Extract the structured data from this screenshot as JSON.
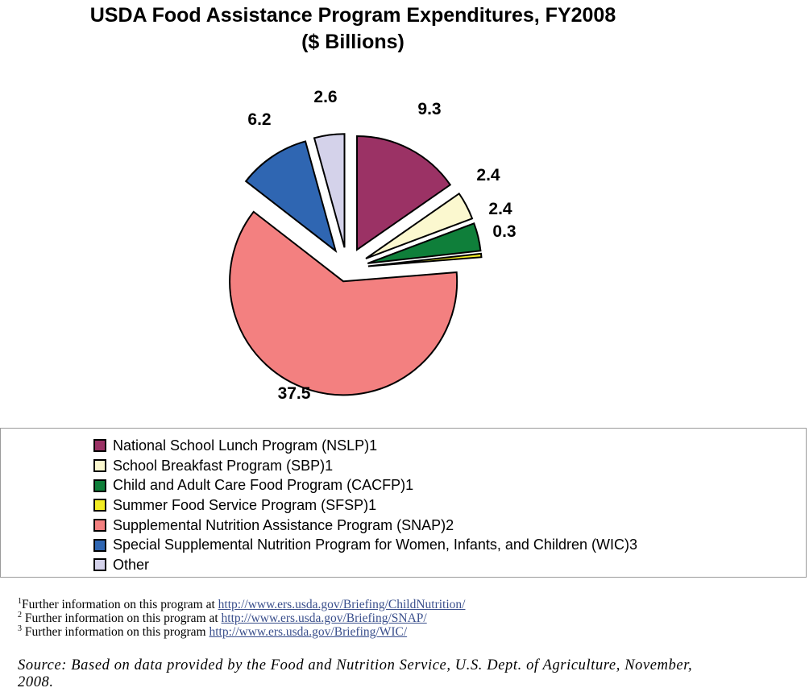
{
  "chart_data": {
    "type": "pie",
    "title": "USDA Food Assistance Program Expenditures, FY2008",
    "subtitle": "($ Billions)",
    "slices": [
      {
        "name": "National School Lunch Program (NSLP)1",
        "value": 9.3,
        "label": "9.3",
        "color": "#9b3265"
      },
      {
        "name": "School Breakfast Program (SBP)1",
        "value": 2.4,
        "label": "2.4",
        "color": "#fbf8cf"
      },
      {
        "name": "Child and Adult Care Food Program (CACFP)1",
        "value": 2.4,
        "label": "2.4",
        "color": "#0f7f3a"
      },
      {
        "name": "Summer Food Service Program (SFSP)1",
        "value": 0.3,
        "label": "0.3",
        "color": "#f2ec24"
      },
      {
        "name": "Supplemental Nutrition Assistance Program (SNAP)2",
        "value": 37.5,
        "label": "37.5",
        "color": "#f38080"
      },
      {
        "name": "Special Supplemental Nutrition Program for Women, Infants, and Children (WIC)3",
        "value": 6.2,
        "label": "6.2",
        "color": "#2f66b2"
      },
      {
        "name": "Other",
        "value": 2.6,
        "label": "2.6",
        "color": "#d4d2ea"
      }
    ],
    "legend_placement": "bottom"
  },
  "footnotes": [
    {
      "mark": "1",
      "text": "Further information on this program at ",
      "link": "http://www.ers.usda.gov/Briefing/ChildNutrition/"
    },
    {
      "mark": "2",
      "text": " Further information on this program at ",
      "link": "http://www.ers.usda.gov/Briefing/SNAP/"
    },
    {
      "mark": "3",
      "text": " Further information on this program ",
      "link": "http://www.ers.usda.gov/Briefing/WIC/"
    }
  ],
  "source": "Source: Based on data provided by the Food and Nutrition Service, U.S. Dept. of Agriculture, November, 2008."
}
